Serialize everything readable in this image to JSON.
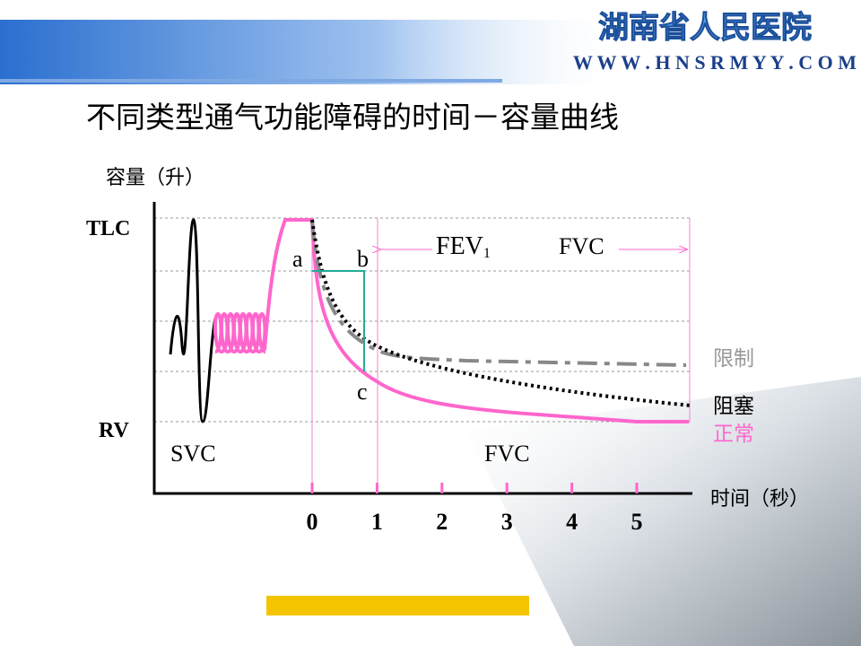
{
  "header": {
    "hospital": "湖南省人民医院",
    "url": "W W W . H N S R M Y Y . C O M"
  },
  "title": "不同类型通气功能障碍的时间－容量曲线",
  "y_label": "容量（升）",
  "y_ticks": [
    "TLC",
    "RV"
  ],
  "x_label": "时间（秒）",
  "x_ticks": [
    0,
    1,
    2,
    3,
    4,
    5
  ],
  "points": [
    "a",
    "b",
    "c"
  ],
  "fev": {
    "text": "FEV",
    "sub": "1"
  },
  "fvc_top": "FVC",
  "svc": "SVC",
  "fvc_bottom": "FVC",
  "legend": [
    "限制",
    "阻塞",
    "正常"
  ]
}
